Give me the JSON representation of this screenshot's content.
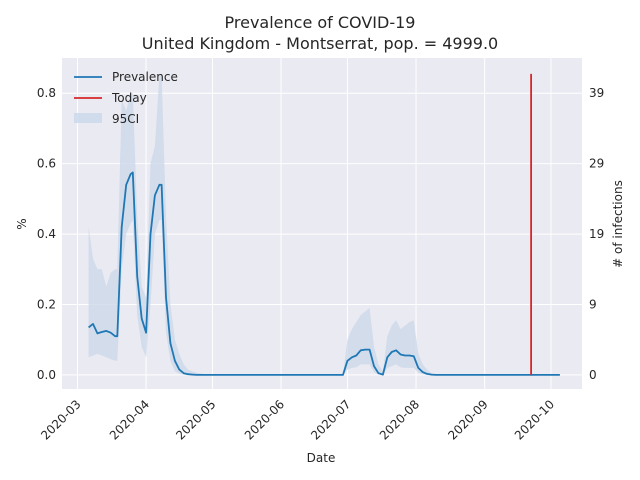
{
  "chart_data": {
    "type": "line",
    "title": "Prevalence of COVID-19",
    "subtitle": "United Kingdom - Montserrat, pop. = 4999.0",
    "xlabel": "Date",
    "ylabel": "%",
    "y2label": "# of infections",
    "ylim": [
      -0.04,
      0.9
    ],
    "xlim": [
      "2020-02-23",
      "2020-10-15"
    ],
    "y_ticks": [
      "0.0",
      "0.2",
      "0.4",
      "0.6",
      "0.8"
    ],
    "y2_ticks": [
      "0",
      "9",
      "19",
      "29",
      "39"
    ],
    "x_ticks": [
      "2020-03",
      "2020-04",
      "2020-05",
      "2020-06",
      "2020-07",
      "2020-08",
      "2020-09",
      "2020-10"
    ],
    "grid": true,
    "legend_placement": "top-left",
    "legend": [
      "Prevalence",
      "Today",
      "95CI"
    ],
    "colors": {
      "prevalence": "#1f77b4",
      "today": "#d62728",
      "ci": "#c9d7e8",
      "background": "#eaeaf2"
    },
    "today": "2020-09-22",
    "today_top": 0.855,
    "series": [
      {
        "name": "Prevalence",
        "x": [
          "2020-03-06",
          "2020-03-08",
          "2020-03-10",
          "2020-03-12",
          "2020-03-14",
          "2020-03-16",
          "2020-03-18",
          "2020-03-19",
          "2020-03-21",
          "2020-03-23",
          "2020-03-25",
          "2020-03-26",
          "2020-03-28",
          "2020-03-30",
          "2020-04-01",
          "2020-04-03",
          "2020-04-05",
          "2020-04-07",
          "2020-04-08",
          "2020-04-10",
          "2020-04-12",
          "2020-04-14",
          "2020-04-16",
          "2020-04-18",
          "2020-04-20",
          "2020-04-22",
          "2020-04-24",
          "2020-04-26",
          "2020-04-28",
          "2020-04-30",
          "2020-05-05",
          "2020-05-15",
          "2020-06-01",
          "2020-06-15",
          "2020-06-29",
          "2020-07-01",
          "2020-07-03",
          "2020-07-05",
          "2020-07-07",
          "2020-07-09",
          "2020-07-11",
          "2020-07-13",
          "2020-07-15",
          "2020-07-17",
          "2020-07-19",
          "2020-07-21",
          "2020-07-23",
          "2020-07-25",
          "2020-07-27",
          "2020-07-29",
          "2020-07-31",
          "2020-08-02",
          "2020-08-04",
          "2020-08-06",
          "2020-08-08",
          "2020-08-10",
          "2020-08-15",
          "2020-09-01",
          "2020-09-15",
          "2020-10-01",
          "2020-10-05"
        ],
        "values": [
          0.135,
          0.145,
          0.118,
          0.122,
          0.125,
          0.12,
          0.11,
          0.11,
          0.42,
          0.54,
          0.57,
          0.575,
          0.28,
          0.16,
          0.12,
          0.4,
          0.51,
          0.54,
          0.54,
          0.22,
          0.09,
          0.04,
          0.015,
          0.005,
          0.002,
          0.001,
          0.0,
          0.0,
          0.0,
          0.0,
          0.0,
          0.0,
          0.0,
          0.0,
          0.0,
          0.04,
          0.05,
          0.055,
          0.07,
          0.072,
          0.072,
          0.025,
          0.005,
          0.001,
          0.05,
          0.065,
          0.07,
          0.058,
          0.055,
          0.055,
          0.053,
          0.02,
          0.008,
          0.003,
          0.001,
          0.0,
          0.0,
          0.0,
          0.0,
          0.0,
          0.0
        ]
      },
      {
        "name": "95CI",
        "x": [
          "2020-03-06",
          "2020-03-08",
          "2020-03-10",
          "2020-03-12",
          "2020-03-14",
          "2020-03-16",
          "2020-03-18",
          "2020-03-19",
          "2020-03-21",
          "2020-03-23",
          "2020-03-25",
          "2020-03-26",
          "2020-03-28",
          "2020-03-30",
          "2020-04-01",
          "2020-04-03",
          "2020-04-05",
          "2020-04-07",
          "2020-04-08",
          "2020-04-10",
          "2020-04-12",
          "2020-04-14",
          "2020-04-16",
          "2020-04-18",
          "2020-04-20",
          "2020-04-22",
          "2020-04-24",
          "2020-04-26",
          "2020-04-28",
          "2020-04-30",
          "2020-05-05",
          "2020-05-15",
          "2020-06-01",
          "2020-06-15",
          "2020-06-29",
          "2020-07-01",
          "2020-07-03",
          "2020-07-05",
          "2020-07-07",
          "2020-07-09",
          "2020-07-11",
          "2020-07-13",
          "2020-07-15",
          "2020-07-17",
          "2020-07-19",
          "2020-07-21",
          "2020-07-23",
          "2020-07-25",
          "2020-07-27",
          "2020-07-29",
          "2020-07-31",
          "2020-08-02",
          "2020-08-04",
          "2020-08-06",
          "2020-08-08",
          "2020-08-10",
          "2020-08-15",
          "2020-09-01",
          "2020-09-15",
          "2020-10-01",
          "2020-10-05"
        ],
        "upper": [
          0.42,
          0.33,
          0.3,
          0.3,
          0.25,
          0.29,
          0.3,
          0.3,
          0.78,
          0.75,
          0.8,
          0.8,
          0.45,
          0.25,
          0.22,
          0.6,
          0.65,
          0.85,
          0.85,
          0.45,
          0.2,
          0.1,
          0.06,
          0.03,
          0.015,
          0.01,
          0.006,
          0.004,
          0.002,
          0.001,
          0.0,
          0.0,
          0.0,
          0.0,
          0.0,
          0.1,
          0.13,
          0.15,
          0.17,
          0.18,
          0.19,
          0.08,
          0.03,
          0.01,
          0.11,
          0.14,
          0.155,
          0.13,
          0.14,
          0.15,
          0.155,
          0.06,
          0.03,
          0.015,
          0.005,
          0.002,
          0.0,
          0.0,
          0.0,
          0.0,
          0.0
        ],
        "lower": [
          0.05,
          0.055,
          0.06,
          0.055,
          0.05,
          0.045,
          0.04,
          0.04,
          0.3,
          0.4,
          0.43,
          0.44,
          0.17,
          0.08,
          0.05,
          0.2,
          0.4,
          0.44,
          0.44,
          0.12,
          0.04,
          0.01,
          0.003,
          0.001,
          0.0,
          0.0,
          0.0,
          0.0,
          0.0,
          0.0,
          0.0,
          0.0,
          0.0,
          0.0,
          0.0,
          0.015,
          0.02,
          0.022,
          0.03,
          0.03,
          0.03,
          0.008,
          0.001,
          0.0,
          0.02,
          0.025,
          0.03,
          0.022,
          0.02,
          0.02,
          0.02,
          0.006,
          0.002,
          0.0,
          0.0,
          0.0,
          0.0,
          0.0,
          0.0,
          0.0,
          0.0
        ]
      }
    ]
  }
}
